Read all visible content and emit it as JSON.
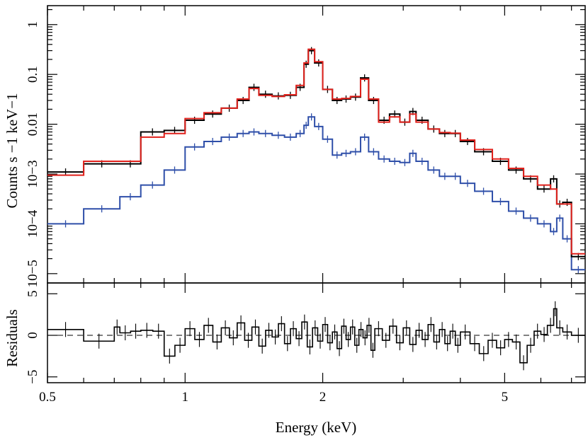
{
  "chart_data": [
    {
      "type": "line",
      "x_scale": "log",
      "y_scale": "log",
      "xlim": [
        0.5,
        7.5
      ],
      "ylim": [
        6.5e-06,
        2.4
      ],
      "ylabel": "Counts s −1 keV−1",
      "ytick_labels": [
        "1",
        "0.1",
        "0.01",
        "10−3",
        "10−4",
        "10−5"
      ],
      "yticks": [
        1,
        0.1,
        0.01,
        0.001,
        0.0001,
        1e-05
      ],
      "colors": {
        "data": "#000000",
        "model": "#e0201b",
        "component": "#2f4fa9"
      },
      "series": [
        {
          "color_key": "data",
          "x": [
            0.5,
            0.6,
            0.72,
            0.8,
            0.9,
            1.0,
            1.1,
            1.2,
            1.3,
            1.38,
            1.45,
            1.55,
            1.65,
            1.75,
            1.82,
            1.86,
            1.92,
            2.0,
            2.1,
            2.2,
            2.3,
            2.42,
            2.52,
            2.65,
            2.8,
            2.95,
            3.1,
            3.2,
            3.4,
            3.6,
            3.8,
            4.0,
            4.3,
            4.7,
            5.1,
            5.5,
            5.9,
            6.3,
            6.5,
            6.7,
            7.0,
            7.5
          ],
          "y": [
            0.0011,
            0.0016,
            0.0016,
            0.007,
            0.0075,
            0.012,
            0.016,
            0.021,
            0.03,
            0.055,
            0.04,
            0.037,
            0.038,
            0.055,
            0.16,
            0.3,
            0.17,
            0.05,
            0.03,
            0.032,
            0.035,
            0.085,
            0.03,
            0.012,
            0.016,
            0.011,
            0.018,
            0.012,
            0.008,
            0.0065,
            0.0065,
            0.0045,
            0.0028,
            0.0018,
            0.0012,
            0.0008,
            0.0005,
            0.0008,
            0.00025,
            0.00027,
            2.2e-05,
            2.2e-05
          ]
        },
        {
          "color_key": "model",
          "x": [
            0.5,
            0.6,
            0.72,
            0.8,
            0.9,
            1.0,
            1.1,
            1.2,
            1.3,
            1.38,
            1.45,
            1.55,
            1.65,
            1.75,
            1.82,
            1.86,
            1.92,
            2.0,
            2.1,
            2.2,
            2.3,
            2.42,
            2.52,
            2.65,
            2.8,
            2.95,
            3.1,
            3.2,
            3.4,
            3.6,
            3.8,
            4.0,
            4.3,
            4.7,
            5.1,
            5.5,
            5.9,
            6.3,
            6.5,
            6.7,
            7.0,
            7.5
          ],
          "y": [
            0.00095,
            0.0018,
            0.0018,
            0.0055,
            0.0065,
            0.013,
            0.017,
            0.021,
            0.032,
            0.052,
            0.038,
            0.036,
            0.039,
            0.06,
            0.17,
            0.32,
            0.18,
            0.05,
            0.032,
            0.033,
            0.036,
            0.08,
            0.032,
            0.011,
            0.014,
            0.011,
            0.016,
            0.011,
            0.008,
            0.0068,
            0.0066,
            0.0048,
            0.0031,
            0.002,
            0.0013,
            0.0009,
            0.0006,
            0.0005,
            0.00025,
            0.00025,
            2.5e-05,
            2.5e-05
          ]
        },
        {
          "color_key": "component",
          "x": [
            0.5,
            0.6,
            0.72,
            0.8,
            0.9,
            1.0,
            1.1,
            1.2,
            1.3,
            1.38,
            1.45,
            1.55,
            1.65,
            1.75,
            1.82,
            1.86,
            1.92,
            2.0,
            2.1,
            2.2,
            2.3,
            2.42,
            2.52,
            2.65,
            2.8,
            2.95,
            3.1,
            3.2,
            3.4,
            3.6,
            3.8,
            4.0,
            4.3,
            4.7,
            5.1,
            5.5,
            5.9,
            6.3,
            6.5,
            6.7,
            7.0,
            7.5
          ],
          "y": [
            0.0001,
            0.0002,
            0.00035,
            0.0006,
            0.0012,
            0.0035,
            0.0045,
            0.0055,
            0.0065,
            0.007,
            0.0065,
            0.006,
            0.0055,
            0.0065,
            0.0095,
            0.014,
            0.009,
            0.005,
            0.0024,
            0.0026,
            0.0028,
            0.0055,
            0.0028,
            0.002,
            0.0018,
            0.0017,
            0.0026,
            0.0018,
            0.0012,
            0.0009,
            0.0009,
            0.00065,
            0.00045,
            0.00028,
            0.00018,
            0.00013,
            0.0001,
            7e-05,
            0.00013,
            5e-05,
            1.2e-05,
            1.2e-05
          ]
        }
      ]
    },
    {
      "type": "line",
      "x_scale": "log",
      "xlim": [
        0.5,
        7.5
      ],
      "ylim": [
        -5.7,
        6.3
      ],
      "xlabel": "Energy (keV)",
      "ylabel": "Residuals",
      "xticks": [
        0.5,
        1,
        2,
        5
      ],
      "xtick_labels": [
        "0.5",
        "1",
        "2",
        "5"
      ],
      "yticks": [
        5,
        0,
        -5
      ],
      "ytick_labels": [
        "5",
        "0",
        "−5"
      ],
      "zero_line": "dashed",
      "series": [
        {
          "color_key": "data",
          "x": [
            0.5,
            0.6,
            0.7,
            0.72,
            0.76,
            0.8,
            0.85,
            0.9,
            0.95,
            1.0,
            1.05,
            1.1,
            1.15,
            1.2,
            1.25,
            1.3,
            1.35,
            1.4,
            1.45,
            1.5,
            1.55,
            1.6,
            1.65,
            1.7,
            1.75,
            1.8,
            1.85,
            1.9,
            1.95,
            2.0,
            2.05,
            2.1,
            2.15,
            2.2,
            2.25,
            2.3,
            2.35,
            2.4,
            2.45,
            2.5,
            2.55,
            2.6,
            2.7,
            2.8,
            2.9,
            3.0,
            3.1,
            3.2,
            3.3,
            3.4,
            3.5,
            3.6,
            3.7,
            3.8,
            3.9,
            4.0,
            4.2,
            4.4,
            4.6,
            4.8,
            5.0,
            5.2,
            5.4,
            5.6,
            5.8,
            6.0,
            6.2,
            6.4,
            6.5,
            6.7,
            7.0,
            7.5
          ],
          "y": [
            0.7,
            -0.7,
            1.0,
            0.3,
            0.5,
            0.6,
            0.5,
            -2.5,
            -1.2,
            0.8,
            -0.5,
            1.2,
            -0.8,
            0.9,
            -0.3,
            1.5,
            -0.6,
            1.0,
            -1.3,
            0.6,
            -0.2,
            1.4,
            -1.0,
            0.8,
            -0.4,
            1.6,
            -1.4,
            0.9,
            -0.7,
            1.3,
            -0.9,
            0.4,
            -1.6,
            1.1,
            -0.5,
            1.0,
            -1.2,
            0.7,
            -0.3,
            1.2,
            -1.8,
            0.8,
            -0.6,
            1.1,
            -0.9,
            0.9,
            -1.1,
            0.6,
            -0.5,
            1.3,
            -0.8,
            0.7,
            -1.0,
            0.5,
            -1.2,
            0.4,
            -1.0,
            -2.2,
            -0.6,
            -1.5,
            -0.5,
            -0.8,
            -3.3,
            -1.2,
            0.5,
            0.1,
            1.2,
            3.2,
            0.9,
            0.4,
            0.0,
            0.0
          ]
        }
      ]
    }
  ]
}
